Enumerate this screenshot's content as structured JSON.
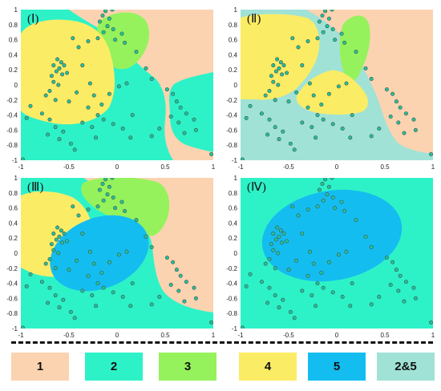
{
  "colors": {
    "r1": "#FBD3B0",
    "r2": "#2DF2C8",
    "r3": "#95F25C",
    "r4": "#FBEC66",
    "r5": "#14BDF0",
    "r25": "#A0E2D6",
    "point": "#1FC49B",
    "point_outline": "#4A4A4A"
  },
  "legend": [
    {
      "label": "1",
      "color": "#FBD3B0"
    },
    {
      "label": "2",
      "color": "#2DF2C8"
    },
    {
      "label": "3",
      "color": "#95F25C"
    },
    {
      "label": "4",
      "color": "#FBEC66"
    },
    {
      "label": "5",
      "color": "#14BDF0"
    },
    {
      "label": "2&5",
      "color": "#A0E2D6"
    }
  ],
  "chart_data": [
    {
      "type": "scatter",
      "panel_label": "(Ⅰ)",
      "xlim": [
        -1,
        1
      ],
      "ylim": [
        -1,
        1
      ],
      "xticks": [
        "-1",
        "-0.5",
        "0",
        "0.5",
        "1"
      ],
      "yticks": [
        "1",
        "0.8",
        "0.6",
        "0.4",
        "0.2",
        "0",
        "-0.2",
        "-0.4",
        "-0.6",
        "-0.8",
        "-1"
      ],
      "regions": [
        "1",
        "2",
        "3",
        "4"
      ]
    },
    {
      "type": "scatter",
      "panel_label": "(Ⅱ)",
      "xlim": [
        -1,
        1
      ],
      "ylim": [
        -1,
        1
      ],
      "xticks": [
        "-1",
        "-0.5",
        "0",
        "0.5",
        "1"
      ],
      "yticks": [
        "1",
        "0.8",
        "0.6",
        "0.4",
        "0.2",
        "0",
        "-0.2",
        "-0.4",
        "-0.6",
        "-0.8",
        "-1"
      ],
      "regions": [
        "1",
        "2&5",
        "3",
        "4"
      ]
    },
    {
      "type": "scatter",
      "panel_label": "(Ⅲ)",
      "xlim": [
        -1,
        1
      ],
      "ylim": [
        -1,
        1
      ],
      "xticks": [
        "-1",
        "-0.5",
        "0",
        "0.5",
        "1"
      ],
      "yticks": [
        "1",
        "0.8",
        "0.6",
        "0.4",
        "0.2",
        "0",
        "-0.2",
        "-0.4",
        "-0.6",
        "-0.8",
        "-1"
      ],
      "regions": [
        "1",
        "2",
        "3",
        "4",
        "5"
      ]
    },
    {
      "type": "scatter",
      "panel_label": "(Ⅳ)",
      "xlim": [
        -1,
        1
      ],
      "ylim": [
        -1,
        1
      ],
      "xticks": [
        "-1",
        "-0.5",
        "0",
        "0.5",
        "1"
      ],
      "yticks": [
        "1",
        "0.8",
        "0.6",
        "0.4",
        "0.2",
        "0",
        "-0.2",
        "-0.4",
        "-0.6",
        "-0.8",
        "-1"
      ],
      "regions": [
        "2",
        "5"
      ]
    }
  ],
  "points": [
    {
      "x": -0.12,
      "y": 0.98
    },
    {
      "x": -0.05,
      "y": 1.0
    },
    {
      "x": -0.15,
      "y": 0.92
    },
    {
      "x": -0.08,
      "y": 0.88
    },
    {
      "x": -0.18,
      "y": 0.84
    },
    {
      "x": -0.1,
      "y": 0.78
    },
    {
      "x": -0.04,
      "y": 0.74
    },
    {
      "x": -0.14,
      "y": 0.7
    },
    {
      "x": 0.05,
      "y": 0.68
    },
    {
      "x": -0.2,
      "y": 0.62
    },
    {
      "x": -0.02,
      "y": 0.6
    },
    {
      "x": 0.08,
      "y": 0.56
    },
    {
      "x": -0.46,
      "y": 0.62
    },
    {
      "x": -0.3,
      "y": 0.58
    },
    {
      "x": -0.4,
      "y": 0.5
    },
    {
      "x": -0.62,
      "y": 0.34
    },
    {
      "x": -0.58,
      "y": 0.3
    },
    {
      "x": -0.66,
      "y": 0.26
    },
    {
      "x": -0.6,
      "y": 0.22
    },
    {
      "x": -0.55,
      "y": 0.26
    },
    {
      "x": -0.63,
      "y": 0.18
    },
    {
      "x": -0.68,
      "y": 0.12
    },
    {
      "x": -0.57,
      "y": 0.14
    },
    {
      "x": -0.52,
      "y": 0.16
    },
    {
      "x": -0.66,
      "y": 0.04
    },
    {
      "x": -0.61,
      "y": 0.0
    },
    {
      "x": -0.7,
      "y": -0.08
    },
    {
      "x": -0.74,
      "y": -0.14
    },
    {
      "x": -0.64,
      "y": -0.2
    },
    {
      "x": -0.5,
      "y": -0.22
    },
    {
      "x": -0.42,
      "y": -0.1
    },
    {
      "x": -0.28,
      "y": 0.02
    },
    {
      "x": -0.24,
      "y": -0.14
    },
    {
      "x": -0.3,
      "y": -0.3
    },
    {
      "x": -0.2,
      "y": -0.4
    },
    {
      "x": -0.16,
      "y": -0.26
    },
    {
      "x": -0.08,
      "y": -0.12
    },
    {
      "x": 0.02,
      "y": -0.02
    },
    {
      "x": 0.1,
      "y": 0.02
    },
    {
      "x": -0.9,
      "y": -0.28
    },
    {
      "x": -0.94,
      "y": -0.44
    },
    {
      "x": -0.78,
      "y": -0.38
    },
    {
      "x": -0.7,
      "y": -0.46
    },
    {
      "x": -0.64,
      "y": -0.56
    },
    {
      "x": -0.56,
      "y": -0.62
    },
    {
      "x": -0.72,
      "y": -0.66
    },
    {
      "x": -0.6,
      "y": -0.72
    },
    {
      "x": -0.48,
      "y": -0.78
    },
    {
      "x": -0.36,
      "y": -0.5
    },
    {
      "x": -0.26,
      "y": -0.56
    },
    {
      "x": -0.14,
      "y": -0.46
    },
    {
      "x": -0.04,
      "y": -0.52
    },
    {
      "x": 0.06,
      "y": -0.58
    },
    {
      "x": 0.16,
      "y": -0.4
    },
    {
      "x": -0.44,
      "y": -0.86
    },
    {
      "x": -0.22,
      "y": -0.7
    },
    {
      "x": 0.14,
      "y": -0.7
    },
    {
      "x": 0.3,
      "y": 0.22
    },
    {
      "x": 0.36,
      "y": 0.08
    },
    {
      "x": 0.52,
      "y": -0.06
    },
    {
      "x": 0.58,
      "y": -0.12
    },
    {
      "x": 0.62,
      "y": -0.22
    },
    {
      "x": 0.66,
      "y": -0.3
    },
    {
      "x": 0.72,
      "y": -0.38
    },
    {
      "x": 0.56,
      "y": -0.42
    },
    {
      "x": 0.64,
      "y": -0.5
    },
    {
      "x": 0.8,
      "y": -0.46
    },
    {
      "x": 0.82,
      "y": -0.6
    },
    {
      "x": 0.7,
      "y": -0.64
    },
    {
      "x": 0.44,
      "y": -0.58
    },
    {
      "x": 0.36,
      "y": -0.68
    },
    {
      "x": 0.98,
      "y": -0.92
    },
    {
      "x": -0.98,
      "y": -0.99
    },
    {
      "x": 0.2,
      "y": 0.44
    },
    {
      "x": -0.36,
      "y": 0.26
    }
  ]
}
